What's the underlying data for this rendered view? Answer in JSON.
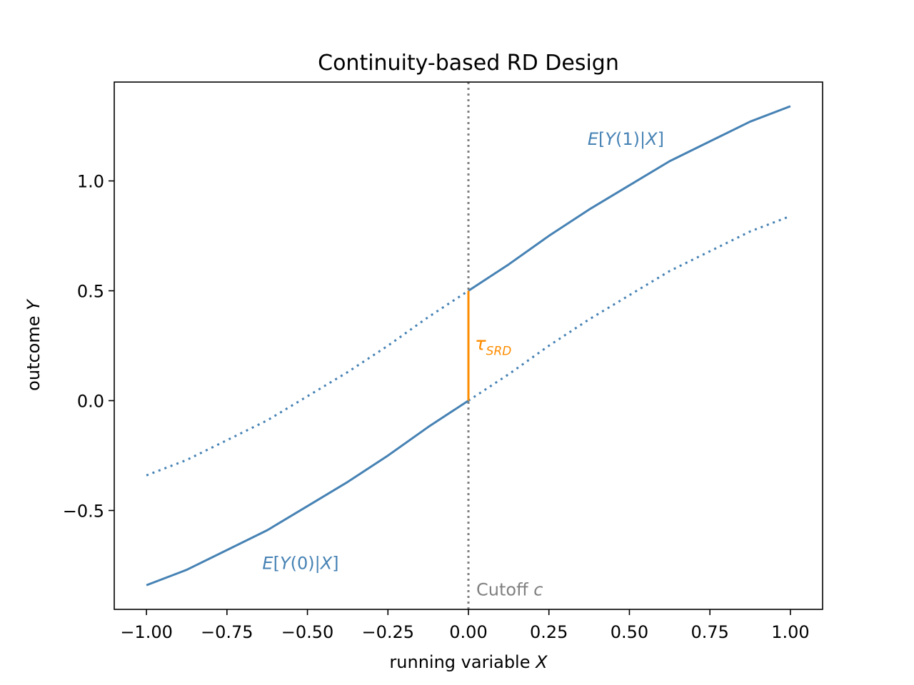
{
  "colors": {
    "series": "#4682b4",
    "effect": "#ff8c00",
    "cutoff": "#808080",
    "axes": "#000000"
  },
  "chart_data": {
    "type": "line",
    "title": "Continuity-based RD Design",
    "xlabel": "running variable",
    "xlabel_var": "X",
    "ylabel": "outcome",
    "ylabel_var": "Y",
    "xlim": [
      -1.1,
      1.1
    ],
    "ylim": [
      -0.95,
      1.45
    ],
    "xticks": [
      -1.0,
      -0.75,
      -0.5,
      -0.25,
      0.0,
      0.25,
      0.5,
      0.75,
      1.0
    ],
    "xtick_labels": [
      "−1.00",
      "−0.75",
      "−0.50",
      "−0.25",
      "0.00",
      "0.25",
      "0.50",
      "0.75",
      "1.00"
    ],
    "yticks": [
      -0.5,
      0.0,
      0.5,
      1.0
    ],
    "ytick_labels": [
      "−0.5",
      "0.0",
      "0.5",
      "1.0"
    ],
    "grid": false,
    "cutoff": 0.0,
    "cutoff_label": "Cutoff",
    "cutoff_var": "c",
    "series": [
      {
        "name": "E[Y(0)|X]",
        "label_parts": [
          "E",
          "[",
          "Y",
          "(0)|",
          "X",
          "]"
        ],
        "x": [
          -1.0,
          -0.875,
          -0.75,
          -0.625,
          -0.5,
          -0.375,
          -0.25,
          -0.125,
          0.0,
          0.125,
          0.25,
          0.375,
          0.5,
          0.625,
          0.75,
          0.875,
          1.0
        ],
        "y": [
          -0.84,
          -0.77,
          -0.68,
          -0.59,
          -0.48,
          -0.37,
          -0.25,
          -0.12,
          0.0,
          0.12,
          0.25,
          0.37,
          0.48,
          0.59,
          0.68,
          0.77,
          0.84
        ],
        "solid_range": [
          -1.0,
          0.0
        ],
        "dotted_range": [
          0.0,
          1.0
        ]
      },
      {
        "name": "E[Y(1)|X]",
        "label_parts": [
          "E",
          "[",
          "Y",
          "(1)|",
          "X",
          "]"
        ],
        "x": [
          -1.0,
          -0.875,
          -0.75,
          -0.625,
          -0.5,
          -0.375,
          -0.25,
          -0.125,
          0.0,
          0.125,
          0.25,
          0.375,
          0.5,
          0.625,
          0.75,
          0.875,
          1.0
        ],
        "y": [
          -0.34,
          -0.27,
          -0.18,
          -0.09,
          0.02,
          0.13,
          0.25,
          0.38,
          0.5,
          0.62,
          0.75,
          0.87,
          0.98,
          1.09,
          1.18,
          1.27,
          1.34
        ],
        "solid_range": [
          0.0,
          1.0
        ],
        "dotted_range": [
          -1.0,
          0.0
        ]
      }
    ],
    "annotations": [
      {
        "id": "tau",
        "text_main": "τ",
        "text_sub": "SRD",
        "x": 0.02,
        "y": 0.23
      },
      {
        "id": "y1-label",
        "series": 1,
        "x": 0.37,
        "y": 1.19
      },
      {
        "id": "y0-label",
        "series": 0,
        "x": -0.64,
        "y": -0.74
      }
    ],
    "effect": {
      "x": 0.0,
      "y_from": 0.0,
      "y_to": 0.5
    }
  }
}
